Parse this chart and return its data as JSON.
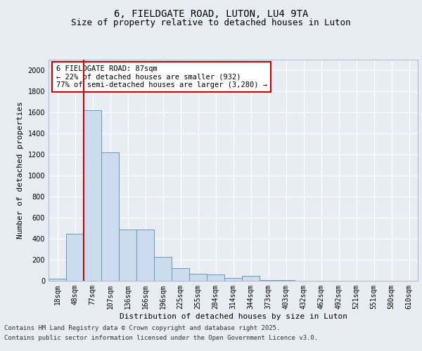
{
  "title1": "6, FIELDGATE ROAD, LUTON, LU4 9TA",
  "title2": "Size of property relative to detached houses in Luton",
  "xlabel": "Distribution of detached houses by size in Luton",
  "ylabel": "Number of detached properties",
  "categories": [
    "18sqm",
    "48sqm",
    "77sqm",
    "107sqm",
    "136sqm",
    "166sqm",
    "196sqm",
    "225sqm",
    "255sqm",
    "284sqm",
    "314sqm",
    "344sqm",
    "373sqm",
    "403sqm",
    "432sqm",
    "462sqm",
    "492sqm",
    "521sqm",
    "551sqm",
    "580sqm",
    "610sqm"
  ],
  "values": [
    20,
    450,
    1620,
    1220,
    490,
    490,
    230,
    120,
    70,
    60,
    30,
    50,
    10,
    5,
    2,
    2,
    0,
    0,
    0,
    0,
    0
  ],
  "bar_color": "#ccdcee",
  "bar_edge_color": "#6699bb",
  "background_color": "#e8edf4",
  "property_line_color": "#cc0000",
  "annotation_box_text": "6 FIELDGATE ROAD: 87sqm\n← 22% of detached houses are smaller (932)\n77% of semi-detached houses are larger (3,280) →",
  "annotation_box_color": "#cc0000",
  "annotation_box_fill": "#ffffff",
  "footer1": "Contains HM Land Registry data © Crown copyright and database right 2025.",
  "footer2": "Contains public sector information licensed under the Open Government Licence v3.0.",
  "ylim": [
    0,
    2100
  ],
  "yticks": [
    0,
    200,
    400,
    600,
    800,
    1000,
    1200,
    1400,
    1600,
    1800,
    2000
  ],
  "title_fontsize": 10,
  "subtitle_fontsize": 9,
  "axis_label_fontsize": 8,
  "tick_fontsize": 7,
  "footer_fontsize": 6.5,
  "ann_fontsize": 7.5
}
